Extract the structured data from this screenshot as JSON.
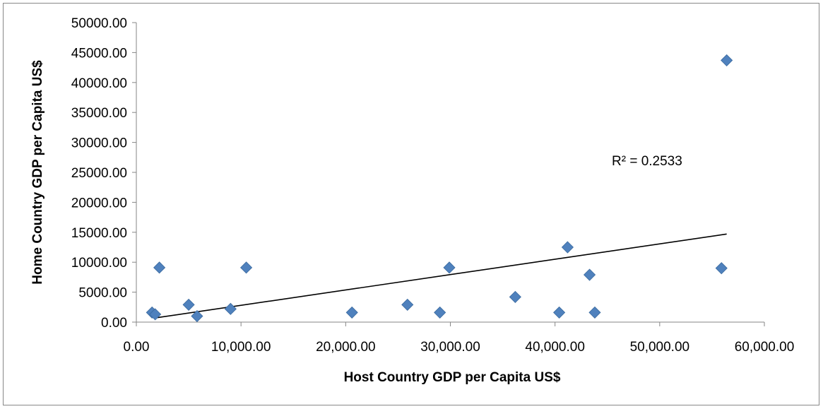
{
  "chart_data": {
    "type": "scatter",
    "title": "",
    "xlabel": "Host Country GDP per Capita US$",
    "ylabel": "Home Country GDP per Capita US$",
    "xlim": [
      0,
      60000
    ],
    "ylim": [
      0,
      50000
    ],
    "x_ticks": [
      "0.00",
      "10,000.00",
      "20,000.00",
      "30,000.00",
      "40,000.00",
      "50,000.00",
      "60,000.00"
    ],
    "y_ticks": [
      "0.00",
      "5000.00",
      "10000.00",
      "15000.00",
      "20000.00",
      "25000.00",
      "30000.00",
      "35000.00",
      "40000.00",
      "45000.00",
      "50000.00"
    ],
    "grid": false,
    "legend": "none",
    "marker": "diamond",
    "marker_color": "#4f81bd",
    "points": [
      {
        "x": 1500,
        "y": 1600
      },
      {
        "x": 1800,
        "y": 1300
      },
      {
        "x": 2200,
        "y": 9100
      },
      {
        "x": 5000,
        "y": 2900
      },
      {
        "x": 5800,
        "y": 1000
      },
      {
        "x": 9000,
        "y": 2200
      },
      {
        "x": 10500,
        "y": 9100
      },
      {
        "x": 20600,
        "y": 1600
      },
      {
        "x": 25900,
        "y": 2900
      },
      {
        "x": 29000,
        "y": 1600
      },
      {
        "x": 29900,
        "y": 9100
      },
      {
        "x": 36200,
        "y": 4200
      },
      {
        "x": 40400,
        "y": 1600
      },
      {
        "x": 41200,
        "y": 12500
      },
      {
        "x": 43300,
        "y": 7900
      },
      {
        "x": 43800,
        "y": 1600
      },
      {
        "x": 55900,
        "y": 9000
      },
      {
        "x": 56400,
        "y": 43700
      }
    ],
    "trendline": {
      "type": "linear",
      "x0": 1800,
      "y0": 700,
      "x1": 56400,
      "y1": 14700,
      "color": "#000000"
    },
    "annotation": "R² = 0.2533"
  }
}
